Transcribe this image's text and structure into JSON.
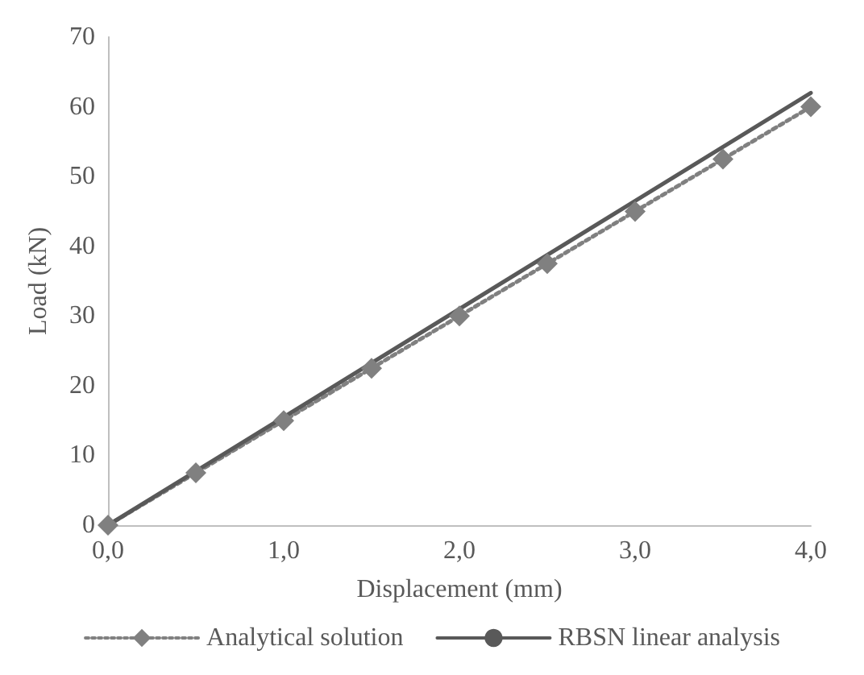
{
  "chart_data": {
    "type": "line",
    "xlabel": "Displacement (mm)",
    "ylabel": "Load (kN)",
    "xlim": [
      0,
      4
    ],
    "xticks": [
      {
        "value": 0,
        "label": "0,0"
      },
      {
        "value": 1,
        "label": "1,0"
      },
      {
        "value": 2,
        "label": "2,0"
      },
      {
        "value": 3,
        "label": "3,0"
      },
      {
        "value": 4,
        "label": "4,0"
      }
    ],
    "ylim": [
      0,
      70
    ],
    "yticks": [
      0,
      10,
      20,
      30,
      40,
      50,
      60,
      70
    ],
    "grid": false,
    "legend": "bottom",
    "series": [
      {
        "name": "Analytical solution",
        "color": "#808080",
        "marker": "diamond",
        "line_style": "dotted",
        "x": [
          0,
          0.5,
          1,
          1.5,
          2,
          2.5,
          3,
          3.5,
          4
        ],
        "values": [
          0,
          7.5,
          15,
          22.5,
          30,
          37.5,
          45,
          52.5,
          60
        ]
      },
      {
        "name": "RBSN linear analysis",
        "color": "#595959",
        "marker": "none",
        "line_style": "solid",
        "x": [
          0,
          4
        ],
        "values": [
          0,
          62
        ]
      }
    ]
  }
}
